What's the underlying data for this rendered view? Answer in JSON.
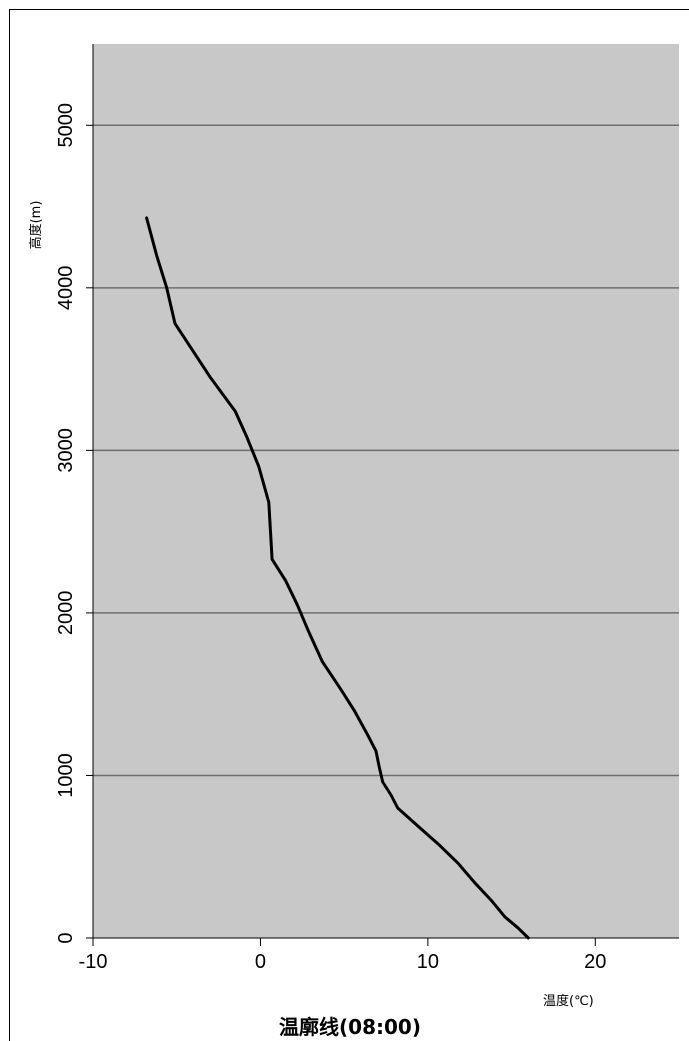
{
  "chart_data": {
    "type": "line",
    "title": "温廓线(08:00)",
    "xlabel": "温度(℃)",
    "ylabel": "高度(m)",
    "xlim": [
      -10,
      25
    ],
    "ylim": [
      0,
      5500
    ],
    "xticks": [
      "-10",
      "0",
      "10",
      "20"
    ],
    "yticks": [
      "0",
      "1000",
      "2000",
      "3000",
      "4000",
      "5000"
    ],
    "grid": "horizontal",
    "plot_background": "#c8c8c8",
    "line_color": "#000000",
    "series": [
      {
        "points": [
          [
            16.0,
            0
          ],
          [
            15.4,
            60
          ],
          [
            14.6,
            130
          ],
          [
            13.8,
            230
          ],
          [
            12.8,
            340
          ],
          [
            11.8,
            460
          ],
          [
            10.6,
            580
          ],
          [
            9.5,
            680
          ],
          [
            8.2,
            800
          ],
          [
            7.8,
            880
          ],
          [
            7.3,
            960
          ],
          [
            7.1,
            1050
          ],
          [
            6.9,
            1150
          ],
          [
            6.4,
            1250
          ],
          [
            5.6,
            1400
          ],
          [
            4.8,
            1530
          ],
          [
            3.7,
            1700
          ],
          [
            2.9,
            1880
          ],
          [
            2.2,
            2050
          ],
          [
            1.5,
            2200
          ],
          [
            0.7,
            2330
          ],
          [
            0.6,
            2500
          ],
          [
            0.5,
            2680
          ],
          [
            -0.1,
            2900
          ],
          [
            -0.8,
            3080
          ],
          [
            -1.5,
            3240
          ],
          [
            -3.0,
            3450
          ],
          [
            -5.1,
            3780
          ],
          [
            -5.6,
            4000
          ],
          [
            -6.2,
            4200
          ],
          [
            -6.8,
            4430
          ]
        ]
      }
    ]
  }
}
